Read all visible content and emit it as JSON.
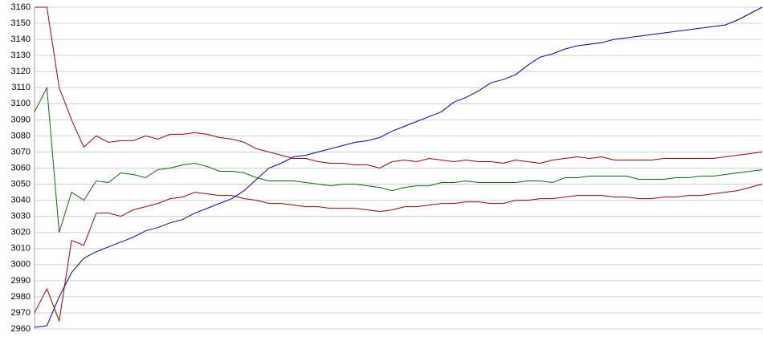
{
  "chart_data": {
    "type": "line",
    "ylim": [
      2960,
      3160
    ],
    "yticks": [
      2960,
      2970,
      2980,
      2990,
      3000,
      3010,
      3020,
      3030,
      3040,
      3050,
      3060,
      3070,
      3080,
      3090,
      3100,
      3110,
      3120,
      3130,
      3140,
      3150,
      3160
    ],
    "grid": true,
    "series": [
      {
        "color": "#0000b0",
        "values": [
          2961,
          2962,
          2980,
          2995,
          3004,
          3008,
          3011,
          3014,
          3017,
          3021,
          3023,
          3026,
          3028,
          3032,
          3035,
          3038,
          3041,
          3046,
          3053,
          3060,
          3063,
          3067,
          3068,
          3070,
          3072,
          3074,
          3076,
          3077,
          3079,
          3083,
          3086,
          3089,
          3092,
          3095,
          3101,
          3104,
          3108,
          3113,
          3115,
          3118,
          3124,
          3129,
          3131,
          3134,
          3136,
          3137,
          3138,
          3140,
          3141,
          3142,
          3143,
          3144,
          3145,
          3146,
          3147,
          3148,
          3149,
          3152,
          3156,
          3160
        ]
      },
      {
        "color": "#a00000",
        "values": [
          3160,
          3160,
          3110,
          3090,
          3073,
          3080,
          3076,
          3077,
          3077,
          3080,
          3078,
          3081,
          3081,
          3082,
          3081,
          3079,
          3078,
          3076,
          3072,
          3070,
          3068,
          3066,
          3066,
          3064,
          3063,
          3063,
          3062,
          3062,
          3060,
          3064,
          3065,
          3064,
          3066,
          3065,
          3064,
          3065,
          3064,
          3064,
          3063,
          3065,
          3064,
          3063,
          3065,
          3066,
          3067,
          3066,
          3067,
          3065,
          3065,
          3065,
          3065,
          3066,
          3066,
          3066,
          3066,
          3066,
          3067,
          3068,
          3069,
          3070
        ]
      },
      {
        "color": "#007000",
        "values": [
          3095,
          3110,
          3020,
          3045,
          3040,
          3052,
          3051,
          3057,
          3056,
          3054,
          3059,
          3060,
          3062,
          3063,
          3061,
          3058,
          3058,
          3057,
          3054,
          3052,
          3052,
          3052,
          3051,
          3050,
          3049,
          3050,
          3050,
          3049,
          3048,
          3046,
          3048,
          3049,
          3049,
          3051,
          3051,
          3052,
          3051,
          3051,
          3051,
          3051,
          3052,
          3052,
          3051,
          3054,
          3054,
          3055,
          3055,
          3055,
          3055,
          3053,
          3053,
          3053,
          3054,
          3054,
          3055,
          3055,
          3056,
          3057,
          3058,
          3059
        ]
      },
      {
        "color": "#a00000",
        "values": [
          2970,
          2985,
          2965,
          3015,
          3012,
          3032,
          3032,
          3030,
          3034,
          3036,
          3038,
          3041,
          3042,
          3045,
          3044,
          3043,
          3043,
          3041,
          3040,
          3038,
          3038,
          3037,
          3036,
          3036,
          3035,
          3035,
          3035,
          3034,
          3033,
          3034,
          3036,
          3036,
          3037,
          3038,
          3038,
          3039,
          3039,
          3038,
          3038,
          3040,
          3040,
          3041,
          3041,
          3042,
          3043,
          3043,
          3043,
          3042,
          3042,
          3041,
          3041,
          3042,
          3042,
          3043,
          3043,
          3044,
          3045,
          3046,
          3048,
          3050
        ]
      }
    ]
  }
}
